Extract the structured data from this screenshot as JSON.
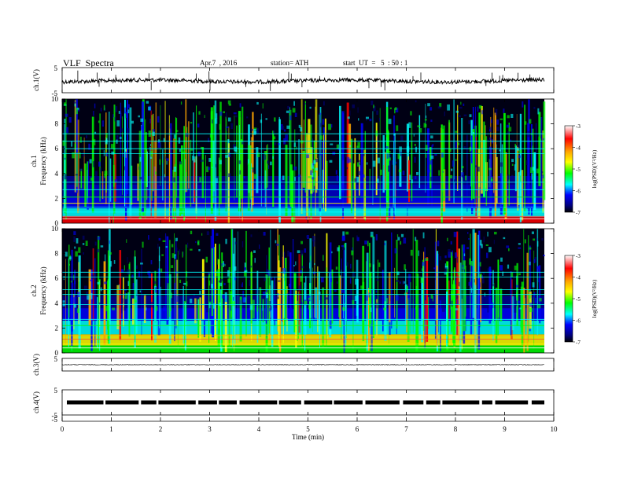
{
  "header": {
    "title": "VLF  Spectra",
    "date": "Apr.7  , 2016",
    "station": "station= ATH",
    "start": "start  UT  =   5  : 50 : 1"
  },
  "colorbar": {
    "label": "log(PSD)(V²/Hz)",
    "ticks": [
      "-3",
      "-4",
      "-5",
      "-6",
      "-7"
    ],
    "colors": [
      "#ffffff",
      "#ff0000",
      "#ffa500",
      "#ffff00",
      "#00ff00",
      "#00ffff",
      "#0000ff",
      "#000080",
      "#000000"
    ]
  },
  "chart_data": [
    {
      "type": "line",
      "panel": "ch1-waveform",
      "ylabel": "ch.1(V)",
      "ylim": [
        -5,
        5
      ],
      "yticks": [
        "5",
        "-5"
      ],
      "x": [
        0,
        9.83
      ],
      "y": [
        0,
        0
      ],
      "note_level": "flat noisy trace near 0 V"
    },
    {
      "type": "heatmap",
      "panel": "ch1-spectrogram",
      "ylabel": "ch.1 Frequency (kHz)",
      "ylim": [
        0,
        10
      ],
      "yticks": [
        "0",
        "2",
        "4",
        "6",
        "8",
        "10"
      ],
      "xlim": [
        0,
        10
      ],
      "zlim": [
        -7,
        -3
      ],
      "zlabel": "log(PSD)(V²/Hz)"
    },
    {
      "type": "heatmap",
      "panel": "ch2-spectrogram",
      "ylabel": "ch.2 Frequency (kHz)",
      "ylim": [
        0,
        10
      ],
      "yticks": [
        "0",
        "2",
        "4",
        "6",
        "8",
        "10"
      ],
      "xlim": [
        0,
        10
      ],
      "zlim": [
        -7,
        -3
      ],
      "zlabel": "log(PSD)(V²/Hz)"
    },
    {
      "type": "line",
      "panel": "ch3-waveform",
      "ylabel": "ch.3(V)",
      "ylim": [
        -5,
        5
      ],
      "yticks": [
        "5"
      ],
      "x": [
        0,
        9.83
      ],
      "y": [
        0,
        0
      ]
    },
    {
      "type": "line",
      "panel": "ch4-waveform",
      "ylabel": "ch.4(V)",
      "ylim": [
        -5,
        5
      ],
      "yticks": [
        "5",
        "-5"
      ],
      "x": [
        0,
        9.83
      ],
      "y": [
        0,
        0
      ]
    }
  ],
  "xaxis": {
    "label": "Time  (min)",
    "ticks": [
      "0",
      "1",
      "2",
      "3",
      "4",
      "5",
      "6",
      "7",
      "8",
      "9",
      "10"
    ]
  }
}
